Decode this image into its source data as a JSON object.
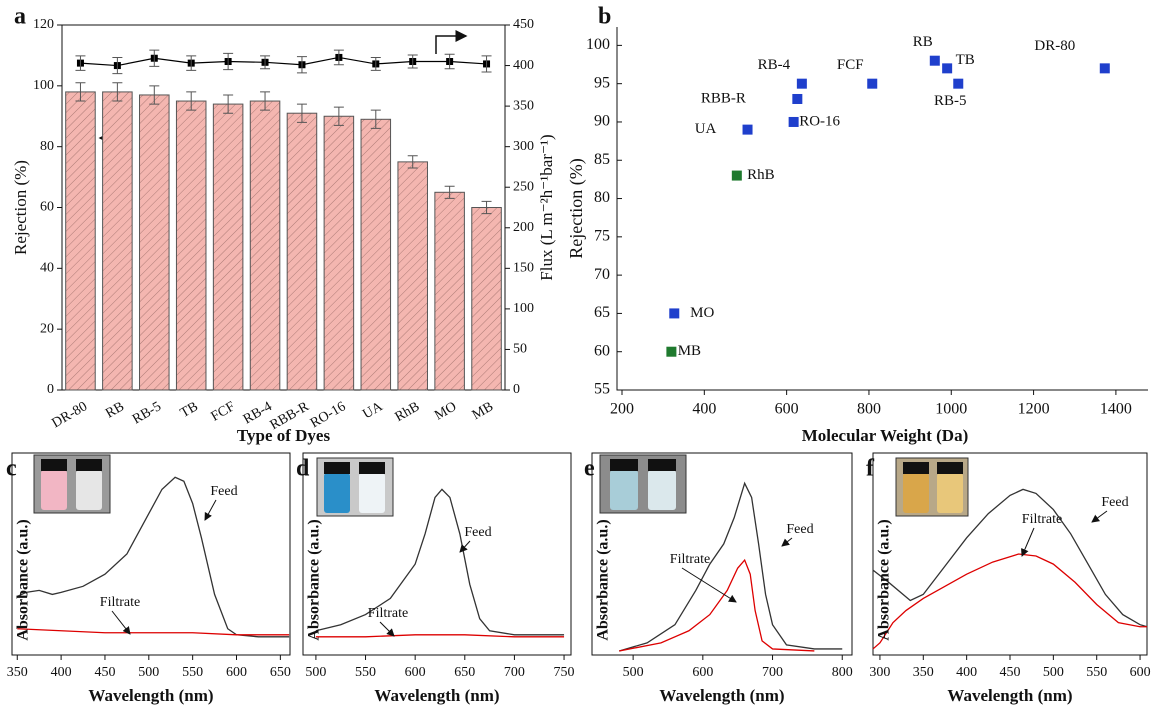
{
  "chart_data": [
    {
      "type": "bar",
      "panel_label": "a",
      "x_label": "Type of Dyes",
      "y_label": "Rejection (%)",
      "y2_label": "Flux (L m⁻²h⁻¹bar⁻¹)",
      "categories": [
        "DR-80",
        "RB",
        "RB-5",
        "TB",
        "FCF",
        "RB-4",
        "RBB-R",
        "RO-16",
        "UA",
        "RhB",
        "MO",
        "MB"
      ],
      "series": [
        {
          "type": "bar",
          "color": "#f4b6b0",
          "values": [
            98,
            98,
            97,
            95,
            94,
            95,
            91,
            90,
            89,
            75,
            65,
            60
          ],
          "errors": [
            3,
            3,
            3,
            3,
            3,
            3,
            3,
            3,
            3,
            2,
            2,
            2
          ]
        },
        {
          "type": "line",
          "axis": "y2",
          "color": "#000000",
          "values": [
            403,
            400,
            409,
            403,
            405,
            404,
            401,
            410,
            402,
            405,
            405,
            402
          ],
          "errors": [
            9,
            10,
            10,
            9,
            10,
            8,
            10,
            9,
            8,
            8,
            9,
            10
          ]
        }
      ],
      "ylim": [
        0,
        120
      ],
      "yticks": [
        0,
        20,
        40,
        60,
        80,
        100,
        120
      ],
      "y2lim": [
        0,
        450
      ],
      "y2ticks": [
        0,
        50,
        100,
        150,
        200,
        250,
        300,
        350,
        400,
        450
      ]
    },
    {
      "type": "scatter",
      "panel_label": "b",
      "x_label": "Molecular Weight (Da)",
      "y_label": "Rejection (%)",
      "series": [
        {
          "color": "#1f3fcc",
          "labels": [
            "DR-80",
            "RB",
            "TB",
            "RB-5",
            "FCF",
            "RB-4",
            "RBB-R",
            "RO-16",
            "UA",
            "MO"
          ],
          "x": [
            1373,
            960,
            990,
            1017,
            808,
            637,
            626,
            617,
            505,
            327
          ],
          "values": [
            97,
            98,
            97,
            95,
            95,
            95,
            93,
            90,
            89,
            65
          ]
        },
        {
          "color": "#1f7a2e",
          "labels": [
            "RhB",
            "MB"
          ],
          "x": [
            479,
            320
          ],
          "values": [
            83,
            60
          ]
        }
      ],
      "xlim": [
        200,
        1478
      ],
      "xticks": [
        200,
        400,
        600,
        800,
        1000,
        1200,
        1400
      ],
      "ylim": [
        55,
        102.4
      ],
      "yticks": [
        55,
        60,
        65,
        70,
        75,
        80,
        85,
        90,
        95,
        100
      ]
    },
    {
      "type": "line",
      "panel_label": "c",
      "x_label": "Wavelength (nm)",
      "y_label": "Absorbance (a.u.)",
      "xlim": [
        344,
        661
      ],
      "xticks": [
        350,
        400,
        450,
        500,
        550,
        600,
        650
      ],
      "ylim": [
        0,
        1
      ],
      "series": [
        {
          "name": "Feed",
          "color": "#333333",
          "x": [
            350,
            360,
            375,
            390,
            400,
            425,
            450,
            475,
            500,
            515,
            530,
            540,
            550,
            560,
            575,
            590,
            600,
            625,
            660
          ],
          "values": [
            0.29,
            0.31,
            0.32,
            0.3,
            0.31,
            0.34,
            0.4,
            0.5,
            0.7,
            0.82,
            0.88,
            0.86,
            0.75,
            0.58,
            0.3,
            0.13,
            0.1,
            0.09,
            0.09
          ]
        },
        {
          "name": "Filtrate",
          "color": "#dd0000",
          "x": [
            350,
            400,
            450,
            500,
            550,
            600,
            660
          ],
          "values": [
            0.13,
            0.12,
            0.11,
            0.11,
            0.11,
            0.1,
            0.1
          ]
        }
      ]
    },
    {
      "type": "line",
      "panel_label": "d",
      "x_label": "Wavelength (nm)",
      "y_label": "Absorbance (a.u.)",
      "xlim": [
        487,
        757
      ],
      "xticks": [
        500,
        550,
        600,
        650,
        700,
        750
      ],
      "ylim": [
        0,
        1
      ],
      "series": [
        {
          "name": "Feed",
          "color": "#333333",
          "x": [
            500,
            525,
            550,
            575,
            600,
            610,
            620,
            627,
            635,
            645,
            655,
            665,
            675,
            700,
            750
          ],
          "values": [
            0.12,
            0.15,
            0.2,
            0.28,
            0.45,
            0.6,
            0.78,
            0.82,
            0.78,
            0.6,
            0.35,
            0.18,
            0.12,
            0.1,
            0.1
          ]
        },
        {
          "name": "Filtrate",
          "color": "#dd0000",
          "x": [
            500,
            550,
            600,
            650,
            700,
            750
          ],
          "values": [
            0.09,
            0.09,
            0.1,
            0.1,
            0.09,
            0.09
          ]
        }
      ]
    },
    {
      "type": "line",
      "panel_label": "e",
      "x_label": "Wavelength (nm)",
      "y_label": "Absorbance (a.u.)",
      "xlim": [
        441,
        814
      ],
      "xticks": [
        500,
        600,
        700,
        800
      ],
      "ylim": [
        0,
        1
      ],
      "series": [
        {
          "name": "Feed",
          "color": "#333333",
          "x": [
            480,
            520,
            560,
            590,
            610,
            630,
            645,
            660,
            670,
            680,
            690,
            700,
            720,
            760,
            800
          ],
          "values": [
            0.02,
            0.06,
            0.15,
            0.32,
            0.45,
            0.55,
            0.68,
            0.85,
            0.78,
            0.55,
            0.3,
            0.15,
            0.05,
            0.03,
            0.03
          ]
        },
        {
          "name": "Filtrate",
          "color": "#dd0000",
          "x": [
            480,
            540,
            580,
            610,
            635,
            650,
            660,
            668,
            675,
            685,
            700,
            760
          ],
          "values": [
            0.02,
            0.06,
            0.12,
            0.2,
            0.32,
            0.43,
            0.47,
            0.4,
            0.22,
            0.07,
            0.03,
            0.02
          ]
        }
      ]
    },
    {
      "type": "line",
      "panel_label": "f",
      "x_label": "Wavelength (nm)",
      "y_label": "Absorbance (a.u.)",
      "xlim": [
        292,
        608
      ],
      "xticks": [
        300,
        350,
        400,
        450,
        500,
        550,
        600
      ],
      "ylim": [
        0,
        1
      ],
      "series": [
        {
          "name": "Feed",
          "color": "#333333",
          "x": [
            292,
            310,
            335,
            350,
            375,
            400,
            425,
            450,
            465,
            480,
            500,
            520,
            540,
            560,
            580,
            600,
            608
          ],
          "values": [
            0.42,
            0.36,
            0.27,
            0.3,
            0.44,
            0.58,
            0.7,
            0.79,
            0.82,
            0.8,
            0.72,
            0.6,
            0.45,
            0.3,
            0.2,
            0.15,
            0.14
          ]
        },
        {
          "name": "Filtrate",
          "color": "#dd0000",
          "x": [
            292,
            300,
            315,
            330,
            350,
            375,
            400,
            430,
            460,
            480,
            500,
            525,
            550,
            575,
            600,
            608
          ],
          "values": [
            0.03,
            0.06,
            0.16,
            0.22,
            0.28,
            0.34,
            0.4,
            0.46,
            0.5,
            0.49,
            0.45,
            0.36,
            0.25,
            0.16,
            0.14,
            0.14
          ]
        }
      ]
    }
  ]
}
